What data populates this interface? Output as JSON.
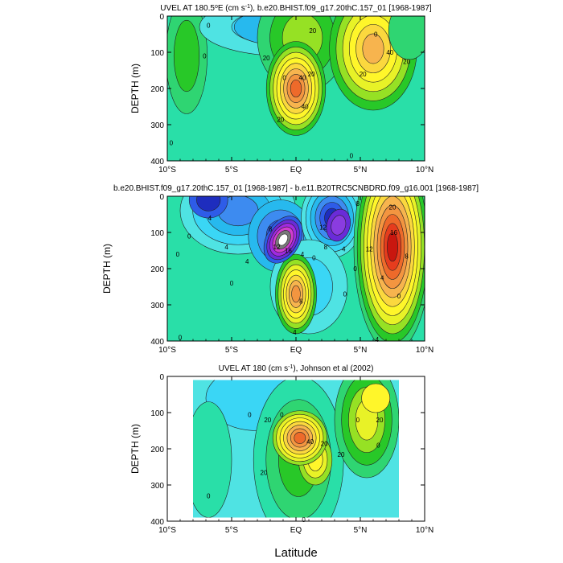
{
  "figure": {
    "x_axis_label": "Latitude",
    "colors": {
      "d1": "#1e2dbe",
      "d2": "#2e5ce8",
      "d3": "#3d8bf0",
      "d4": "#27b9ee",
      "d5": "#3ad6f5",
      "d6": "#4fe3e3",
      "d7": "#29dfa8",
      "d8": "#2fd572",
      "d9": "#28c828",
      "d10": "#96e124",
      "w1": "#e8f227",
      "w2": "#fff62a",
      "w3": "#fbd83e",
      "w4": "#f7b44e",
      "w5": "#f39540",
      "w6": "#ee6a2a",
      "w7": "#e63c1d",
      "w8": "#c9170f",
      "w9": "#ffffff"
    }
  },
  "chart_data": [
    {
      "type": "contour",
      "title": "UVEL AT 180.5°E (cm s⁻¹), b.e20.BHIST.f09_g17.20thC.157_01 [1968-1987]",
      "title_main": "UVEL AT 180.5",
      "title_sup": "o",
      "title_rest": "E (cm s",
      "title_sup2": "-1",
      "title_end": "), b.e20.BHIST.f09_g17.20thC.157_01 [1968-1987]",
      "ylabel": "DEPTH (m)",
      "xlabel": "",
      "xlim": [
        -10,
        10
      ],
      "ylim": [
        0,
        400
      ],
      "y_inverted": true,
      "xticks": [
        -10,
        -5,
        0,
        5,
        10
      ],
      "xtick_labels": [
        "10°S",
        "5°S",
        "EQ",
        "5°N",
        "10°N"
      ],
      "yticks": [
        0,
        100,
        200,
        300,
        400
      ],
      "ytick_labels": [
        "0",
        "100",
        "200",
        "300",
        "400"
      ],
      "base_level": "d7",
      "features": [
        {
          "x": -8.5,
          "y": 110,
          "rx": 1.6,
          "ry": 160,
          "levels": [
            "d8",
            "d9"
          ]
        },
        {
          "x": -1.0,
          "y": 30,
          "rx": 6.5,
          "ry": 80,
          "levels": [
            "d6",
            "d5"
          ]
        },
        {
          "x": -1.3,
          "y": 30,
          "rx": 3.5,
          "ry": 50,
          "levels": [
            "d4"
          ]
        },
        {
          "x": 0.5,
          "y": 60,
          "rx": 3.5,
          "ry": 150,
          "levels": [
            "d8",
            "d9",
            "d10"
          ]
        },
        {
          "x": 0.0,
          "y": 200,
          "rx": 2.3,
          "ry": 130,
          "levels": [
            "d9",
            "d10",
            "w1",
            "w2",
            "w3",
            "w4",
            "w5",
            "w6"
          ]
        },
        {
          "x": 6.0,
          "y": 90,
          "rx": 3.4,
          "ry": 170,
          "levels": [
            "d9",
            "d10",
            "w1",
            "w2",
            "w3",
            "w4"
          ]
        },
        {
          "x": 8.8,
          "y": 40,
          "rx": 1.6,
          "ry": 80,
          "levels": [
            "d8"
          ]
        }
      ],
      "contour_labels": [
        {
          "x": -6.8,
          "y": 25,
          "text": "0"
        },
        {
          "x": -7.1,
          "y": 110,
          "text": "0"
        },
        {
          "x": -2.3,
          "y": 115,
          "text": "20"
        },
        {
          "x": 1.3,
          "y": 40,
          "text": "20"
        },
        {
          "x": 1.2,
          "y": 160,
          "text": "20"
        },
        {
          "x": 0.5,
          "y": 170,
          "text": "40"
        },
        {
          "x": -0.9,
          "y": 170,
          "text": "0"
        },
        {
          "x": 0.7,
          "y": 250,
          "text": "40"
        },
        {
          "x": -1.2,
          "y": 285,
          "text": "20"
        },
        {
          "x": 5.2,
          "y": 160,
          "text": "20"
        },
        {
          "x": 7.3,
          "y": 100,
          "text": "40"
        },
        {
          "x": 8.6,
          "y": 125,
          "text": "20"
        },
        {
          "x": 6.2,
          "y": 50,
          "text": "0"
        },
        {
          "x": 4.3,
          "y": 385,
          "text": "0"
        },
        {
          "x": -9.7,
          "y": 350,
          "text": "0"
        }
      ]
    },
    {
      "type": "contour",
      "title": "b.e20.BHIST.f09_g17.20thC.157_01 [1968-1987] - b.e11.B20TRC5CNBDRD.f09_g16.001 [1968-1987]",
      "ylabel": "DEPTH (m)",
      "xlabel": "",
      "xlim": [
        -10,
        10
      ],
      "ylim": [
        0,
        400
      ],
      "y_inverted": true,
      "xticks": [
        -10,
        -5,
        0,
        5,
        10
      ],
      "xtick_labels": [
        "10°S",
        "5°S",
        "EQ",
        "5°N",
        "10°N"
      ],
      "yticks": [
        0,
        100,
        200,
        300,
        400
      ],
      "ytick_labels": [
        "0",
        "100",
        "200",
        "300",
        "400"
      ],
      "base_level": "d7",
      "features": [
        {
          "x": -4.5,
          "y": 40,
          "rx": 4.5,
          "ry": 120,
          "levels": [
            "d6",
            "d5",
            "d4",
            "d3"
          ]
        },
        {
          "x": -6.8,
          "y": 10,
          "rx": 1.5,
          "ry": 50,
          "levels": [
            "d2",
            "d1"
          ]
        },
        {
          "x": -1.2,
          "y": 110,
          "rx": 2.5,
          "ry": 100,
          "levels": [
            "d4",
            "d3",
            "d2"
          ]
        },
        {
          "x": 2.8,
          "y": 60,
          "rx": 2.4,
          "ry": 110,
          "levels": [
            "d6",
            "d5",
            "d4",
            "d3",
            "d2",
            "d1"
          ]
        },
        {
          "x": 1.0,
          "y": 250,
          "rx": 3.0,
          "ry": 130,
          "levels": [
            "d6",
            "d5"
          ]
        },
        {
          "x": 0.0,
          "y": 270,
          "rx": 1.6,
          "ry": 110,
          "levels": [
            "d9",
            "d10",
            "w1",
            "w2",
            "w3",
            "w4",
            "w5"
          ]
        },
        {
          "x": 7.5,
          "y": 140,
          "rx": 3.0,
          "ry": 290,
          "levels": [
            "d8",
            "d9",
            "d10",
            "w1",
            "w2",
            "w3",
            "w4",
            "w5",
            "w6",
            "w7",
            "w8"
          ]
        }
      ],
      "tilted_features": [
        {
          "x": -1.0,
          "y": 120,
          "rx": 1.3,
          "ry": 70,
          "rot": 30,
          "levels": [
            "d2",
            "#6a2bd8",
            "#a02ae0",
            "#d13ed0",
            "#7a7a7a",
            "#ffffff"
          ]
        },
        {
          "x": 3.3,
          "y": 80,
          "rx": 0.9,
          "ry": 45,
          "rot": 15,
          "levels": [
            "#6a2bd8",
            "#8a3ce0"
          ]
        }
      ],
      "contour_labels": [
        {
          "x": -8.3,
          "y": 110,
          "text": "0"
        },
        {
          "x": -5.4,
          "y": 140,
          "text": "4"
        },
        {
          "x": -6.7,
          "y": 60,
          "text": "4"
        },
        {
          "x": -2.0,
          "y": 90,
          "text": "8"
        },
        {
          "x": -1.5,
          "y": 140,
          "text": "12"
        },
        {
          "x": -0.6,
          "y": 150,
          "text": "16"
        },
        {
          "x": 2.1,
          "y": 85,
          "text": "12"
        },
        {
          "x": 2.3,
          "y": 140,
          "text": "8"
        },
        {
          "x": 3.7,
          "y": 145,
          "text": "4"
        },
        {
          "x": 4.6,
          "y": 200,
          "text": "0"
        },
        {
          "x": 0.5,
          "y": 160,
          "text": "4"
        },
        {
          "x": 1.4,
          "y": 170,
          "text": "0"
        },
        {
          "x": 0.4,
          "y": 290,
          "text": "8"
        },
        {
          "x": -0.1,
          "y": 375,
          "text": "4"
        },
        {
          "x": 3.8,
          "y": 270,
          "text": "0"
        },
        {
          "x": -9.2,
          "y": 160,
          "text": "0"
        },
        {
          "x": -5.0,
          "y": 240,
          "text": "0"
        },
        {
          "x": -3.8,
          "y": 180,
          "text": "4"
        },
        {
          "x": 5.7,
          "y": 145,
          "text": "12"
        },
        {
          "x": 7.6,
          "y": 100,
          "text": "16"
        },
        {
          "x": 8.6,
          "y": 165,
          "text": "8"
        },
        {
          "x": 6.7,
          "y": 225,
          "text": "4"
        },
        {
          "x": 8.0,
          "y": 275,
          "text": "0"
        },
        {
          "x": 6.3,
          "y": 395,
          "text": "4"
        },
        {
          "x": -9.0,
          "y": 390,
          "text": "0"
        },
        {
          "x": 7.5,
          "y": 30,
          "text": "20"
        },
        {
          "x": 4.8,
          "y": 20,
          "text": "8"
        }
      ]
    },
    {
      "type": "contour",
      "title": "UVEL AT 180 (cm s⁻¹), Johnson et al (2002)",
      "title_main": "UVEL AT 180 (cm s",
      "title_sup": "-1",
      "title_end": "), Johnson et al (2002)",
      "ylabel": "DEPTH (m)",
      "xlabel": "Latitude",
      "xlim": [
        -10,
        10
      ],
      "ylim": [
        0,
        400
      ],
      "y_inverted": true,
      "xticks": [
        -10,
        -5,
        0,
        5,
        10
      ],
      "xtick_labels": [
        "10°S",
        "5°S",
        "EQ",
        "5°N",
        "10°N"
      ],
      "yticks": [
        0,
        100,
        200,
        300,
        400
      ],
      "ytick_labels": [
        "0",
        "100",
        "200",
        "300",
        "400"
      ],
      "data_extent": {
        "x_min": -8.0,
        "x_max": 8.0,
        "y_min": 10,
        "y_max": 390
      },
      "base_level": "d6",
      "features": [
        {
          "x": -3.0,
          "y": 60,
          "rx": 4.0,
          "ry": 90,
          "levels": [
            "d5"
          ]
        },
        {
          "x": -6.8,
          "y": 230,
          "rx": 1.8,
          "ry": 160,
          "levels": [
            "d7"
          ]
        },
        {
          "x": 0.2,
          "y": 230,
          "rx": 3.5,
          "ry": 230,
          "levels": [
            "d7",
            "d8",
            "d9"
          ]
        },
        {
          "x": 5.5,
          "y": 120,
          "rx": 2.5,
          "ry": 160,
          "levels": [
            "d8",
            "d9",
            "d10",
            "w1"
          ]
        },
        {
          "x": 6.2,
          "y": 60,
          "rx": 1.1,
          "ry": 40,
          "levels": [
            "w2"
          ]
        },
        {
          "x": 1.5,
          "y": 230,
          "rx": 1.3,
          "ry": 70,
          "levels": [
            "d10",
            "w1",
            "w2"
          ]
        },
        {
          "x": 0.3,
          "y": 170,
          "rx": 2.1,
          "ry": 75,
          "levels": [
            "d10",
            "w1",
            "w2",
            "w3",
            "w4",
            "w5",
            "w6"
          ]
        }
      ],
      "contour_labels": [
        {
          "x": -2.2,
          "y": 120,
          "text": "20"
        },
        {
          "x": -1.1,
          "y": 105,
          "text": "0"
        },
        {
          "x": 2.2,
          "y": 185,
          "text": "20"
        },
        {
          "x": 1.1,
          "y": 180,
          "text": "40"
        },
        {
          "x": -2.5,
          "y": 265,
          "text": "20"
        },
        {
          "x": 3.5,
          "y": 215,
          "text": "20"
        },
        {
          "x": 6.5,
          "y": 120,
          "text": "20"
        },
        {
          "x": 4.8,
          "y": 120,
          "text": "0"
        },
        {
          "x": 6.4,
          "y": 190,
          "text": "0"
        },
        {
          "x": -6.8,
          "y": 330,
          "text": "0"
        },
        {
          "x": -3.6,
          "y": 105,
          "text": "0"
        },
        {
          "x": 0.6,
          "y": 395,
          "text": "0"
        }
      ]
    }
  ]
}
